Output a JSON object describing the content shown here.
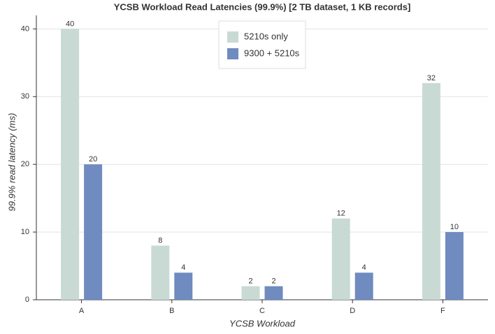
{
  "chart_data": {
    "type": "bar",
    "title": "YCSB Workload Read Latencies (99.9%) [2 TB dataset, 1 KB records]",
    "x_label": "YCSB Workload",
    "y_label": "99.9% read latency (ms)",
    "categories": [
      "A",
      "B",
      "C",
      "D",
      "F"
    ],
    "series": [
      {
        "name": "5210s only",
        "color": "#c8dad3",
        "values": [
          40,
          8,
          2,
          12,
          32
        ]
      },
      {
        "name": "9300 + 5210s",
        "color": "#6f8bbf",
        "values": [
          20,
          4,
          2,
          4,
          10
        ]
      }
    ],
    "ylim": [
      0,
      42
    ],
    "yticks": [
      0,
      10,
      20,
      30,
      40
    ],
    "grid": true,
    "legend": "top-center"
  }
}
